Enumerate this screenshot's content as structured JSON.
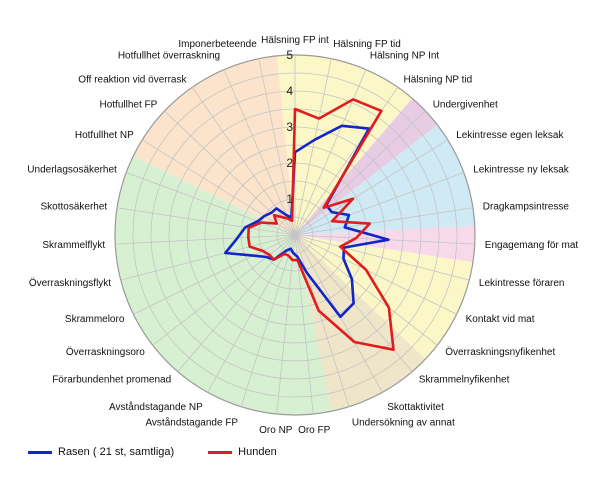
{
  "chart_data": {
    "type": "radar",
    "title": "",
    "rlim": [
      0,
      5
    ],
    "rticks": [
      "1",
      "2",
      "3",
      "4",
      "5"
    ],
    "grid": true,
    "legend_position": "bottom-left",
    "categories": [
      "Hälsning FP int",
      "Hälsning FP tid",
      "Hälsning NP Int",
      "Hälsning NP tid",
      "Undergivenhet",
      "Lekintresse egen leksak",
      "Lekintresse ny leksak",
      "Dragkampsintresse",
      "Engagemang för mat",
      "Lekintresse föraren",
      "Kontakt vid mat",
      "Överraskningsnyfikenhet",
      "Skrammelnyfikenhet",
      "Skottaktivitet",
      "Undersökning av annat",
      "Oro FP",
      "Oro NP",
      "Avståndstagande FP",
      "Avståndstagande NP",
      "Förarbundenhet promenad",
      "Överraskningsoro",
      "Skrammeloro",
      "Överraskningsflykt",
      "Skrammelflykt",
      "Skottosäkerhet",
      "Underlagsosäkerhet",
      "Hotfullhet NP",
      "Hotfullhet FP",
      "Off reaktion vid överrask",
      "Hotfullhet överraskning",
      "Imponerbeteende"
    ],
    "groups": [
      {
        "name": "positive",
        "color": "#fbf7c7",
        "from": 0,
        "to": 3
      },
      {
        "name": "submission",
        "color": "#e7cce3",
        "from": 4,
        "to": 4
      },
      {
        "name": "play",
        "color": "#cfe9f5",
        "from": 5,
        "to": 7
      },
      {
        "name": "food",
        "color": "#f8d9ea",
        "from": 8,
        "to": 8
      },
      {
        "name": "contact",
        "color": "#fbf7c7",
        "from": 9,
        "to": 11
      },
      {
        "name": "curiosity",
        "color": "#efe6c9",
        "from": 12,
        "to": 14
      },
      {
        "name": "fear",
        "color": "#d8f0d2",
        "from": 15,
        "to": 25
      },
      {
        "name": "aggression",
        "color": "#fbe4cb",
        "from": 26,
        "to": 30
      }
    ],
    "series": [
      {
        "name": "Rasen ( 21 st, samtliga)",
        "color": "#1226c8",
        "values": [
          2.3,
          2.7,
          3.3,
          3.6,
          1.2,
          1.2,
          1.6,
          1.4,
          2.6,
          1.4,
          1.5,
          2.0,
          2.5,
          2.6,
          1.1,
          0.6,
          0.5,
          0.4,
          0.5,
          0.9,
          1.0,
          1.3,
          2.0,
          1.6,
          1.4,
          1.1,
          1.0,
          0.9,
          0.9,
          0.6,
          0.5
        ]
      },
      {
        "name": "Hunden",
        "color": "#e21c1c",
        "values": [
          3.5,
          3.3,
          4.1,
          4.2,
          1.1,
          1.9,
          1.1,
          2.1,
          1.7,
          1.3,
          2.2,
          3.3,
          4.2,
          3.4,
          2.2,
          0.7,
          0.7,
          0.6,
          0.6,
          0.9,
          0.9,
          1.0,
          1.3,
          1.3,
          1.3,
          1.0,
          0.6,
          0.8,
          0.6,
          0.5,
          0.4
        ]
      }
    ]
  }
}
